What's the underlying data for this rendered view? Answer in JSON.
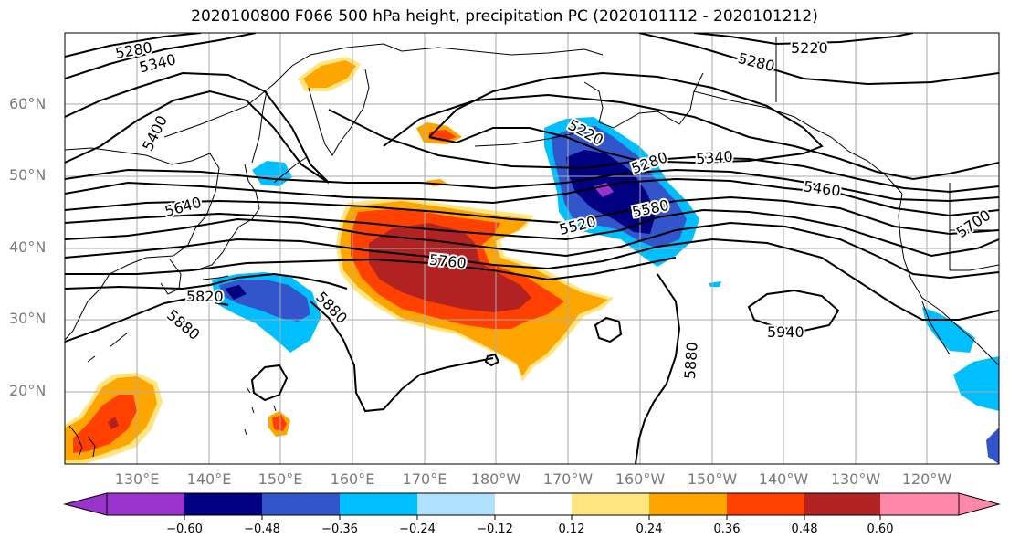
{
  "title": "2020100800 F066 500 hPa height, precipitation PC (2020101112 - 2020101212)",
  "lat_labels": [
    "60°N",
    "50°N",
    "40°N",
    "30°N",
    "20°N"
  ],
  "lon_labels": [
    "130°E",
    "140°E",
    "150°E",
    "160°E",
    "170°E",
    "180°W",
    "170°W",
    "160°W",
    "150°W",
    "140°W",
    "130°W",
    "120°W"
  ],
  "contour_labels": [
    "5280",
    "5340",
    "5400",
    "5220",
    "5280",
    "5220",
    "5280",
    "5340",
    "5460",
    "5640",
    "5520",
    "5580",
    "5700",
    "5760",
    "5820",
    "5880",
    "5880",
    "5880",
    "5940"
  ],
  "colorbar": {
    "tick_labels": [
      "−0.60",
      "−0.48",
      "−0.36",
      "−0.24",
      "−0.12",
      "0.12",
      "0.24",
      "0.36",
      "0.48",
      "0.60"
    ],
    "colors": [
      "#9933cc",
      "#000080",
      "#3355cc",
      "#00bfff",
      "#b0e2ff",
      "#ffffff",
      "#ffe680",
      "#ffa500",
      "#ff4000",
      "#b22222",
      "#ff88aa"
    ]
  },
  "colors": {
    "neg_light": "#b0e2ff",
    "neg_sky": "#00bfff",
    "neg_blue": "#3355cc",
    "neg_navy": "#000080",
    "neg_purple": "#9933cc",
    "pos_yellow": "#ffe680",
    "pos_orange": "#ffa500",
    "pos_redorange": "#ff4000",
    "pos_darkred": "#b22222",
    "contour": "#000000",
    "coast": "#000000",
    "grid": "#aaaaaa"
  }
}
